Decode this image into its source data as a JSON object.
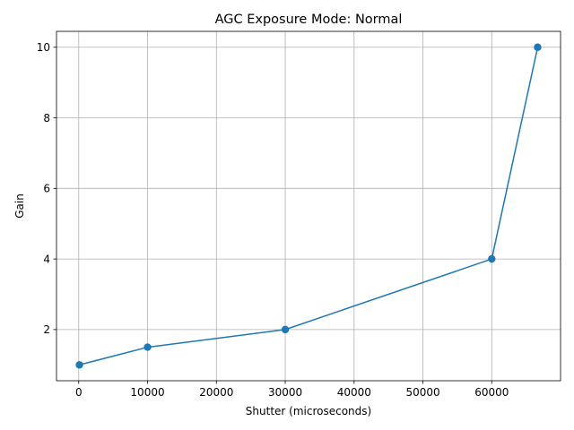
{
  "chart_data": {
    "type": "line",
    "title": "AGC Exposure Mode: Normal",
    "xlabel": "Shutter (microseconds)",
    "ylabel": "Gain",
    "x_ticks": [
      0,
      10000,
      20000,
      30000,
      40000,
      50000,
      60000
    ],
    "y_ticks": [
      2,
      4,
      6,
      8,
      10
    ],
    "grid": true,
    "legend": "none",
    "series": [
      {
        "color": "#1f77b4",
        "marker": "circle",
        "x": [
          100,
          10000,
          30000,
          60000,
          66666
        ],
        "y": [
          1.0,
          1.5,
          2.0,
          4.0,
          10.0
        ]
      }
    ]
  }
}
